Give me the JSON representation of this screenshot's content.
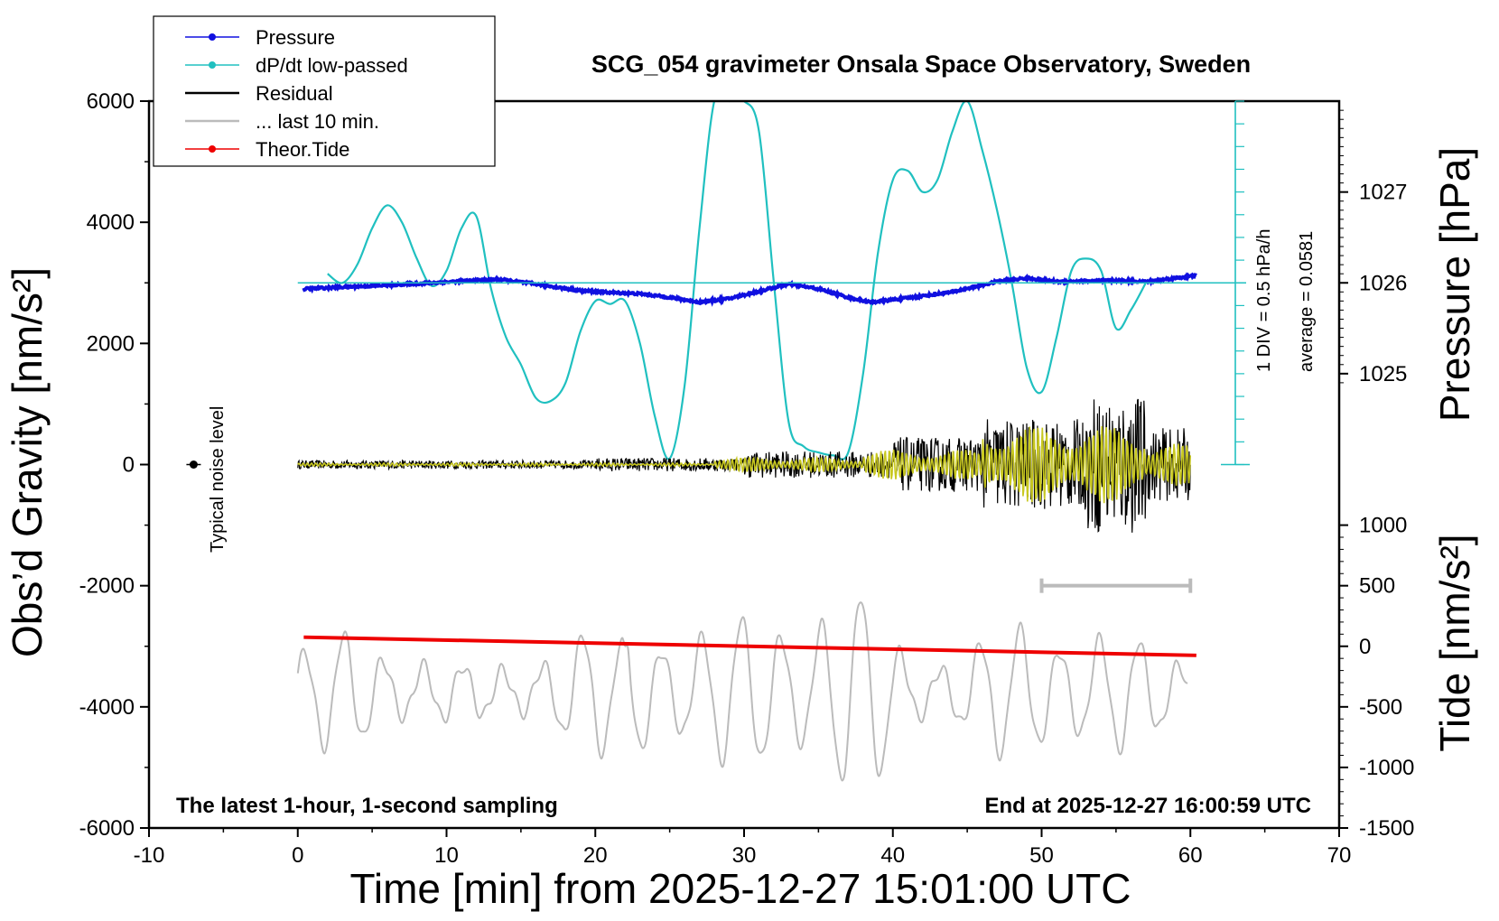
{
  "chart_data": {
    "type": "line",
    "title": "SCG_054 gravimeter Onsala Space Observatory, Sweden",
    "xlabel": "Time [min] from 2025-12-27 15:01:00 UTC",
    "ylabel_left": "Obs’d Gravity [nm/s²]",
    "ylabel_right_top": "Pressure [hPa]",
    "ylabel_right_bottom": "Tide [nm/s²]",
    "xlim": [
      -10,
      70
    ],
    "ylim": [
      -6000,
      6000
    ],
    "x_ticks": [
      "-10",
      "0",
      "10",
      "20",
      "30",
      "40",
      "50",
      "60",
      "70"
    ],
    "y_ticks": [
      "6000",
      "4000",
      "2000",
      "0",
      "-2000",
      "-4000",
      "-6000"
    ],
    "pressure_ticks": [
      "1027",
      "1026",
      "1025"
    ],
    "pressure_axis": {
      "value_1026_gravity": 3000,
      "hpa_per_gravity_unit": 0.000667
    },
    "tide_ticks": [
      "1000",
      "500",
      "0",
      "-500",
      "-1000",
      "-1500"
    ],
    "tide_axis": {
      "zero_at_gravity": -3000,
      "scale": 2
    },
    "annotations": {
      "bottom_left": "The latest 1-hour, 1-second sampling",
      "bottom_right": "End at 2025-12-27 16:00:59 UTC",
      "noise_label": "Typical noise level",
      "dpdt_scale": "1 DIV = 0.5 hPa/h",
      "dpdt_average": "average = 0.0581"
    },
    "noise_marker": {
      "x": -7,
      "y": 0
    },
    "last10_bar": {
      "x_start": 50,
      "x_end": 60,
      "y": -2000
    },
    "legend": [
      {
        "label": "Pressure",
        "color": "#1010e0",
        "marker": true
      },
      {
        "label": "dP/dt low-passed",
        "color": "#20c0c0",
        "marker": true
      },
      {
        "label": "Residual",
        "color": "#000000",
        "marker": false
      },
      {
        "label": "... last 10 min.",
        "color": "#bbbbbb",
        "marker": false
      },
      {
        "label": "Theor.Tide",
        "color": "#ee0000",
        "marker": true
      }
    ],
    "colors": {
      "pressure": "#1010e0",
      "dpdt": "#20c0c0",
      "residual": "#000000",
      "residual_filtered": "#c8c820",
      "last10": "#bbbbbb",
      "tide": "#ee0000"
    },
    "series": [
      {
        "name": "Pressure",
        "x": [
          0.4,
          3,
          6,
          9,
          12,
          13.5,
          16,
          19,
          21,
          23,
          25,
          27,
          29,
          31,
          33,
          35,
          37,
          38.5,
          41,
          44,
          47,
          49,
          51,
          53,
          55,
          57,
          60.4
        ],
        "y": [
          2900,
          2930,
          2960,
          3000,
          3040,
          3060,
          2980,
          2870,
          2840,
          2820,
          2760,
          2680,
          2740,
          2860,
          2980,
          2900,
          2760,
          2680,
          2750,
          2850,
          3020,
          3080,
          3020,
          3030,
          3040,
          3020,
          3120
        ]
      },
      {
        "name": "dP/dt low-passed",
        "x": [
          2,
          3,
          4,
          5,
          6,
          7,
          8,
          9,
          10,
          11,
          12,
          13,
          14,
          15,
          16,
          17,
          18,
          19,
          20,
          21,
          22,
          23,
          24,
          25,
          26,
          27,
          28,
          29,
          30,
          31,
          32,
          33,
          34,
          35,
          36,
          37,
          38,
          39,
          40,
          41,
          42,
          43,
          44,
          45,
          46,
          47,
          48,
          49,
          50,
          51,
          52,
          53,
          54,
          55,
          56,
          57
        ],
        "y": [
          3150,
          3000,
          3300,
          3900,
          4280,
          4000,
          3400,
          2950,
          3200,
          3900,
          4100,
          2900,
          2100,
          1650,
          1100,
          1050,
          1350,
          2200,
          2700,
          2650,
          2700,
          2000,
          800,
          100,
          1300,
          3900,
          6000,
          6000,
          6000,
          5500,
          3000,
          700,
          300,
          200,
          150,
          200,
          1500,
          3500,
          4700,
          4850,
          4500,
          4700,
          5500,
          6000,
          5200,
          4200,
          3000,
          1600,
          1200,
          2100,
          3200,
          3400,
          3200,
          2250,
          2550,
          3000
        ]
      },
      {
        "name": "Theor.Tide",
        "x": [
          0.4,
          60.4
        ],
        "y": [
          -2850,
          -3150
        ]
      }
    ]
  }
}
